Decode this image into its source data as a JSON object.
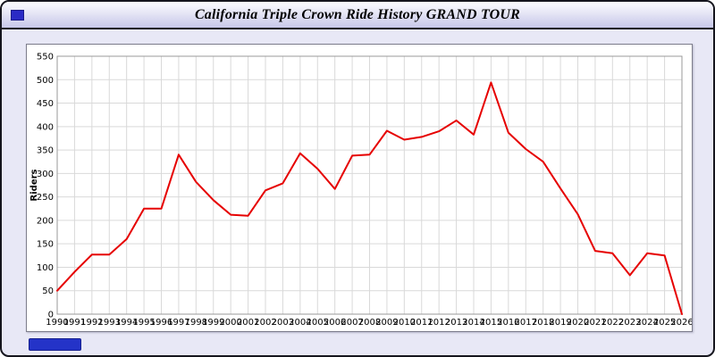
{
  "page": {
    "title": "California Triple Crown Ride History GRAND TOUR",
    "background": "#e8e8f6"
  },
  "icons": {
    "corner": "blue-square-icon",
    "footer": "blue-bar-link"
  },
  "chart_data": {
    "type": "line",
    "title": "California Triple Crown Ride History GRAND TOUR",
    "xlabel": "",
    "ylabel": "Riders",
    "ylim": [
      0,
      550
    ],
    "ytick_step": 50,
    "grid": true,
    "legend": "none",
    "colors": {
      "line": "#e60000",
      "grid": "#d9d9d9",
      "axis": "#999999",
      "text": "#000000"
    },
    "x": [
      1990,
      1991,
      1992,
      1993,
      1994,
      1995,
      1996,
      1997,
      1998,
      1999,
      2000,
      2001,
      2002,
      2003,
      2004,
      2005,
      2006,
      2007,
      2008,
      2009,
      2010,
      2011,
      2012,
      2013,
      2014,
      2015,
      2016,
      2017,
      2018,
      2019,
      2020,
      2021,
      2022,
      2023,
      2024,
      2025,
      2026
    ],
    "values": [
      50,
      90,
      127,
      127,
      160,
      225,
      225,
      340,
      282,
      243,
      212,
      210,
      264,
      279,
      343,
      310,
      267,
      338,
      340,
      391,
      372,
      378,
      390,
      413,
      383,
      494,
      387,
      352,
      325,
      268,
      213,
      135,
      130,
      83,
      130,
      125,
      0
    ]
  }
}
